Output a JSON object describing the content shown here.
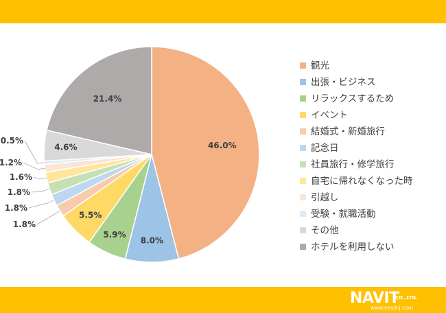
{
  "colors": {
    "bar": "#ffc000",
    "logo_text": "#ffffff"
  },
  "logo": {
    "brand": "NAVIT",
    "company": "CO.,LTD.",
    "url": "www.navit-j.com"
  },
  "chart_data": {
    "type": "pie",
    "start_angle_deg": 0,
    "direction": "clockwise",
    "legend_position": "right",
    "slices": [
      {
        "label": "観光",
        "value": 46.0,
        "display": "46.0%",
        "color": "#f4b183"
      },
      {
        "label": "出張・ビジネス",
        "value": 8.0,
        "display": "8.0%",
        "color": "#9dc3e6"
      },
      {
        "label": "リラックスするため",
        "value": 5.9,
        "display": "5.9%",
        "color": "#a9d18e"
      },
      {
        "label": "イベント",
        "value": 5.5,
        "display": "5.5%",
        "color": "#ffd966"
      },
      {
        "label": "結婚式・新婚旅行",
        "value": 1.8,
        "display": "1.8%",
        "color": "#f8cbad"
      },
      {
        "label": "記念日",
        "value": 1.8,
        "display": "1.8%",
        "color": "#bdd7ee"
      },
      {
        "label": "社員旅行・修学旅行",
        "value": 1.8,
        "display": "1.8%",
        "color": "#c5e0b4"
      },
      {
        "label": "自宅に帰れなくなった時",
        "value": 1.6,
        "display": "1.6%",
        "color": "#ffe699"
      },
      {
        "label": "引越し",
        "value": 1.2,
        "display": "1.2%",
        "color": "#fbe5d6"
      },
      {
        "label": "受験・就職活動",
        "value": 0.5,
        "display": "0.5%",
        "color": "#deebf7"
      },
      {
        "label": "その他",
        "value": 4.6,
        "display": "4.6%",
        "color": "#d9d9d9"
      },
      {
        "label": "ホテルを利用しない",
        "value": 21.4,
        "display": "21.4%",
        "color": "#aeaaaa"
      }
    ]
  }
}
